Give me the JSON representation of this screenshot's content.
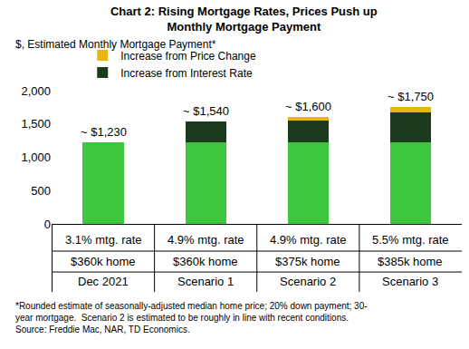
{
  "chart_data": {
    "type": "bar",
    "stacked": true,
    "title": [
      "Chart 2: Rising Mortgage Rates, Prices Push up",
      "Monthly Mortgage Payment"
    ],
    "ylabel": "$, Estimated Monthly Mortgage Payment*",
    "categories": [
      "Dec 2021",
      "Scenario 1",
      "Scenario 2",
      "Scenario 3"
    ],
    "category_details": [
      [
        "3.1% mtg. rate",
        "$360k home"
      ],
      [
        "4.9% mtg. rate",
        "$360k home"
      ],
      [
        "4.9% mtg. rate",
        "$375k home"
      ],
      [
        "5.5% mtg. rate",
        "$385k home"
      ]
    ],
    "series": [
      {
        "color": "#3cc83c",
        "values": [
          1230,
          1230,
          1230,
          1230
        ]
      },
      {
        "name": "Increase from Interest Rate",
        "color": "#1c3a1e",
        "values": [
          0,
          310,
          320,
          440
        ]
      },
      {
        "name": "Increase from Price Change",
        "color": "#e8b410",
        "values": [
          0,
          0,
          50,
          80
        ]
      }
    ],
    "total_labels": [
      "~ $1,230",
      "~ $1,540",
      "~ $1,600",
      "~ $1,750"
    ],
    "ylim": [
      0,
      2000
    ],
    "yticks": [
      0,
      500,
      {
        "value": 1000,
        "label": "1,000"
      },
      {
        "value": 1500,
        "label": "1,500"
      },
      {
        "value": 2000,
        "label": "2,000"
      }
    ],
    "grid": false,
    "legend": "top left",
    "footnote": [
      "*Rounded estimate of seasonally-adjusted median home price; 20% down payment; 30-",
      "year mortgage.  Scenario 2 is estimated to be roughly in line with recent conditions.",
      "Source: Freddie Mac, NAR, TD Economics."
    ]
  }
}
